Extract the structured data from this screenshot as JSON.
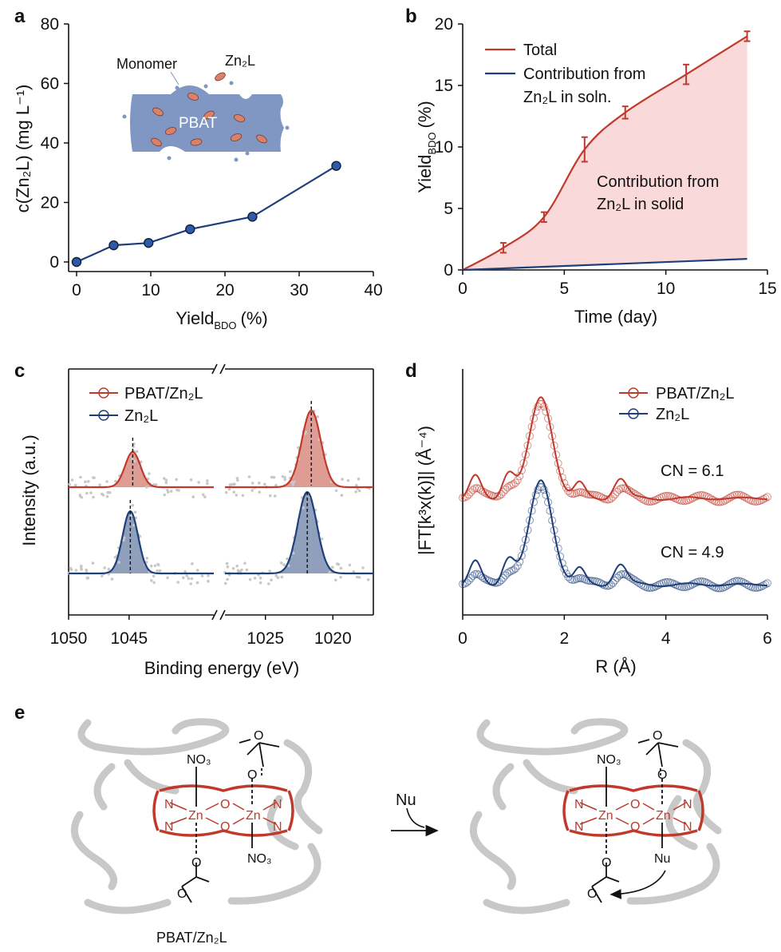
{
  "panels": {
    "a": "a",
    "b": "b",
    "c": "c",
    "d": "d",
    "e": "e"
  },
  "colors": {
    "red": "#c0392b",
    "blue": "#1f3f7a",
    "dot_fill": "#2e5aa8",
    "inset_fill": "#7f97c2",
    "inset_particle": "#d9826a",
    "shade_red": "#f9d9d9",
    "grey": "#c8c8c8"
  },
  "chart_data": [
    {
      "id": "a",
      "type": "line",
      "xlabel_main": "Yield",
      "xlabel_sub": "BDO",
      "xlabel_unit": "(%)",
      "ylabel": "c(Zn₂L) (mg L⁻¹)",
      "xlim": [
        0,
        40
      ],
      "ylim": [
        0,
        80
      ],
      "xticks": [
        "0",
        "10",
        "20",
        "30",
        "40"
      ],
      "yticks": [
        "0",
        "20",
        "40",
        "60",
        "80"
      ],
      "series": [
        {
          "x": [
            0,
            5,
            9.7,
            15.3,
            23.7,
            35
          ],
          "y": [
            0,
            5.6,
            6.4,
            11,
            15.2,
            32.3
          ]
        }
      ],
      "inset": {
        "monomer": "Monomer",
        "catalyst": "Zn₂L",
        "polymer": "PBAT"
      }
    },
    {
      "id": "b",
      "type": "line",
      "xlabel": "Time (day)",
      "ylabel_main": "Yield",
      "ylabel_sub": "BDO",
      "ylabel_unit": "(%)",
      "xlim": [
        0,
        15
      ],
      "ylim": [
        0,
        20
      ],
      "xticks": [
        "0",
        "5",
        "10",
        "15"
      ],
      "yticks": [
        "0",
        "5",
        "10",
        "15",
        "20"
      ],
      "series": [
        {
          "name": "Total",
          "x": [
            2,
            4,
            6,
            8,
            11,
            14
          ],
          "y": [
            1.8,
            4.3,
            9.8,
            12.8,
            15.9,
            19.0
          ],
          "err": [
            0.4,
            0.4,
            1.0,
            0.5,
            0.8,
            0.4
          ]
        },
        {
          "name": "Contribution from Zn₂L in soln.",
          "x": [
            0,
            14
          ],
          "y": [
            0,
            0.9
          ]
        }
      ],
      "legend_total": "Total",
      "legend_soln_1": "Contribution from",
      "legend_soln_2": "Zn₂L in soln.",
      "annotation_1": "Contribution from",
      "annotation_2": "Zn₂L in solid"
    },
    {
      "id": "c",
      "type": "line",
      "xlabel": "Binding energy (eV)",
      "ylabel": "Intensity (a.u.)",
      "xticks": [
        "1050",
        "1045",
        "1025",
        "1020"
      ],
      "peaks": {
        "PBAT/Zn₂L": [
          1044.7,
          1021.6
        ],
        "Zn₂L": [
          1044.9,
          1021.9
        ]
      },
      "series": [
        {
          "name": "PBAT/Zn₂L"
        },
        {
          "name": "Zn₂L"
        }
      ]
    },
    {
      "id": "d",
      "type": "line",
      "xlabel": "R (Å)",
      "ylabel": "|FT[k³x(k)]| (Å⁻⁴)",
      "xlim": [
        0,
        6
      ],
      "xticks": [
        "0",
        "2",
        "4",
        "6"
      ],
      "series": [
        {
          "name": "PBAT/Zn₂L",
          "CN": 6.1
        },
        {
          "name": "Zn₂L",
          "CN": 4.9
        }
      ],
      "cn_top": "CN = 6.1",
      "cn_bottom": "CN = 4.9"
    }
  ],
  "diagram_e": {
    "nu": "Nu",
    "no3": "NO₃",
    "zn": "Zn",
    "n": "N",
    "o": "O",
    "caption": "PBAT/Zn₂L"
  }
}
